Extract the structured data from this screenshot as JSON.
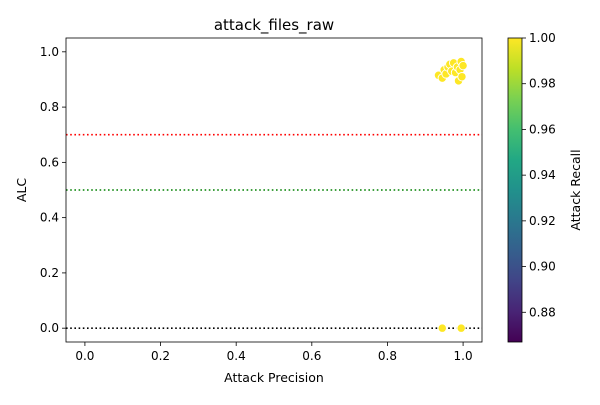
{
  "chart_data": {
    "type": "scatter",
    "title": "attack_files_raw",
    "xlabel": "Attack Precision",
    "ylabel": "ALC",
    "xlim": [
      -0.05,
      1.05
    ],
    "ylim": [
      -0.05,
      1.05
    ],
    "xticks": [
      "0.0",
      "0.2",
      "0.4",
      "0.6",
      "0.8",
      "1.0"
    ],
    "yticks": [
      "0.0",
      "0.2",
      "0.4",
      "0.6",
      "0.8",
      "1.0"
    ],
    "grid": false,
    "points": [
      {
        "x": 0.945,
        "y": 0.0,
        "c": 1.0
      },
      {
        "x": 0.995,
        "y": 0.0,
        "c": 1.0
      },
      {
        "x": 0.935,
        "y": 0.915,
        "c": 1.0
      },
      {
        "x": 0.945,
        "y": 0.905,
        "c": 1.0
      },
      {
        "x": 0.95,
        "y": 0.935,
        "c": 1.0
      },
      {
        "x": 0.955,
        "y": 0.92,
        "c": 1.0
      },
      {
        "x": 0.96,
        "y": 0.945,
        "c": 1.0
      },
      {
        "x": 0.965,
        "y": 0.955,
        "c": 1.0
      },
      {
        "x": 0.97,
        "y": 0.93,
        "c": 1.0
      },
      {
        "x": 0.975,
        "y": 0.96,
        "c": 1.0
      },
      {
        "x": 0.98,
        "y": 0.925,
        "c": 1.0
      },
      {
        "x": 0.985,
        "y": 0.945,
        "c": 1.0
      },
      {
        "x": 0.988,
        "y": 0.895,
        "c": 1.0
      },
      {
        "x": 0.992,
        "y": 0.935,
        "c": 1.0
      },
      {
        "x": 0.995,
        "y": 0.965,
        "c": 1.0
      },
      {
        "x": 0.997,
        "y": 0.91,
        "c": 1.0
      },
      {
        "x": 1.0,
        "y": 0.95,
        "c": 1.0
      }
    ],
    "hlines": [
      {
        "y": 0.7,
        "color": "#ff0000",
        "style": "dotted"
      },
      {
        "y": 0.5,
        "color": "#008000",
        "style": "dotted"
      },
      {
        "y": 0.0,
        "color": "#000000",
        "style": "dotted"
      }
    ],
    "colorbar": {
      "label": "Attack Recall",
      "colormap": "viridis",
      "range": [
        0.867,
        1.0
      ],
      "ticks": [
        0.88,
        0.9,
        0.92,
        0.94,
        0.96,
        0.98,
        1.0
      ],
      "tick_labels": [
        "0.88",
        "0.90",
        "0.92",
        "0.94",
        "0.96",
        "0.98",
        "1.00"
      ]
    },
    "point_edge_color": "#ffffff"
  }
}
